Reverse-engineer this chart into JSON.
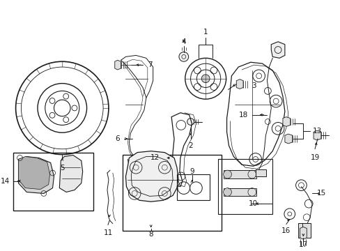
{
  "background_color": "#ffffff",
  "line_color": "#1a1a1a",
  "fig_width": 4.89,
  "fig_height": 3.6,
  "dpi": 100,
  "label_fontsize": 7.5,
  "lw": 0.7
}
